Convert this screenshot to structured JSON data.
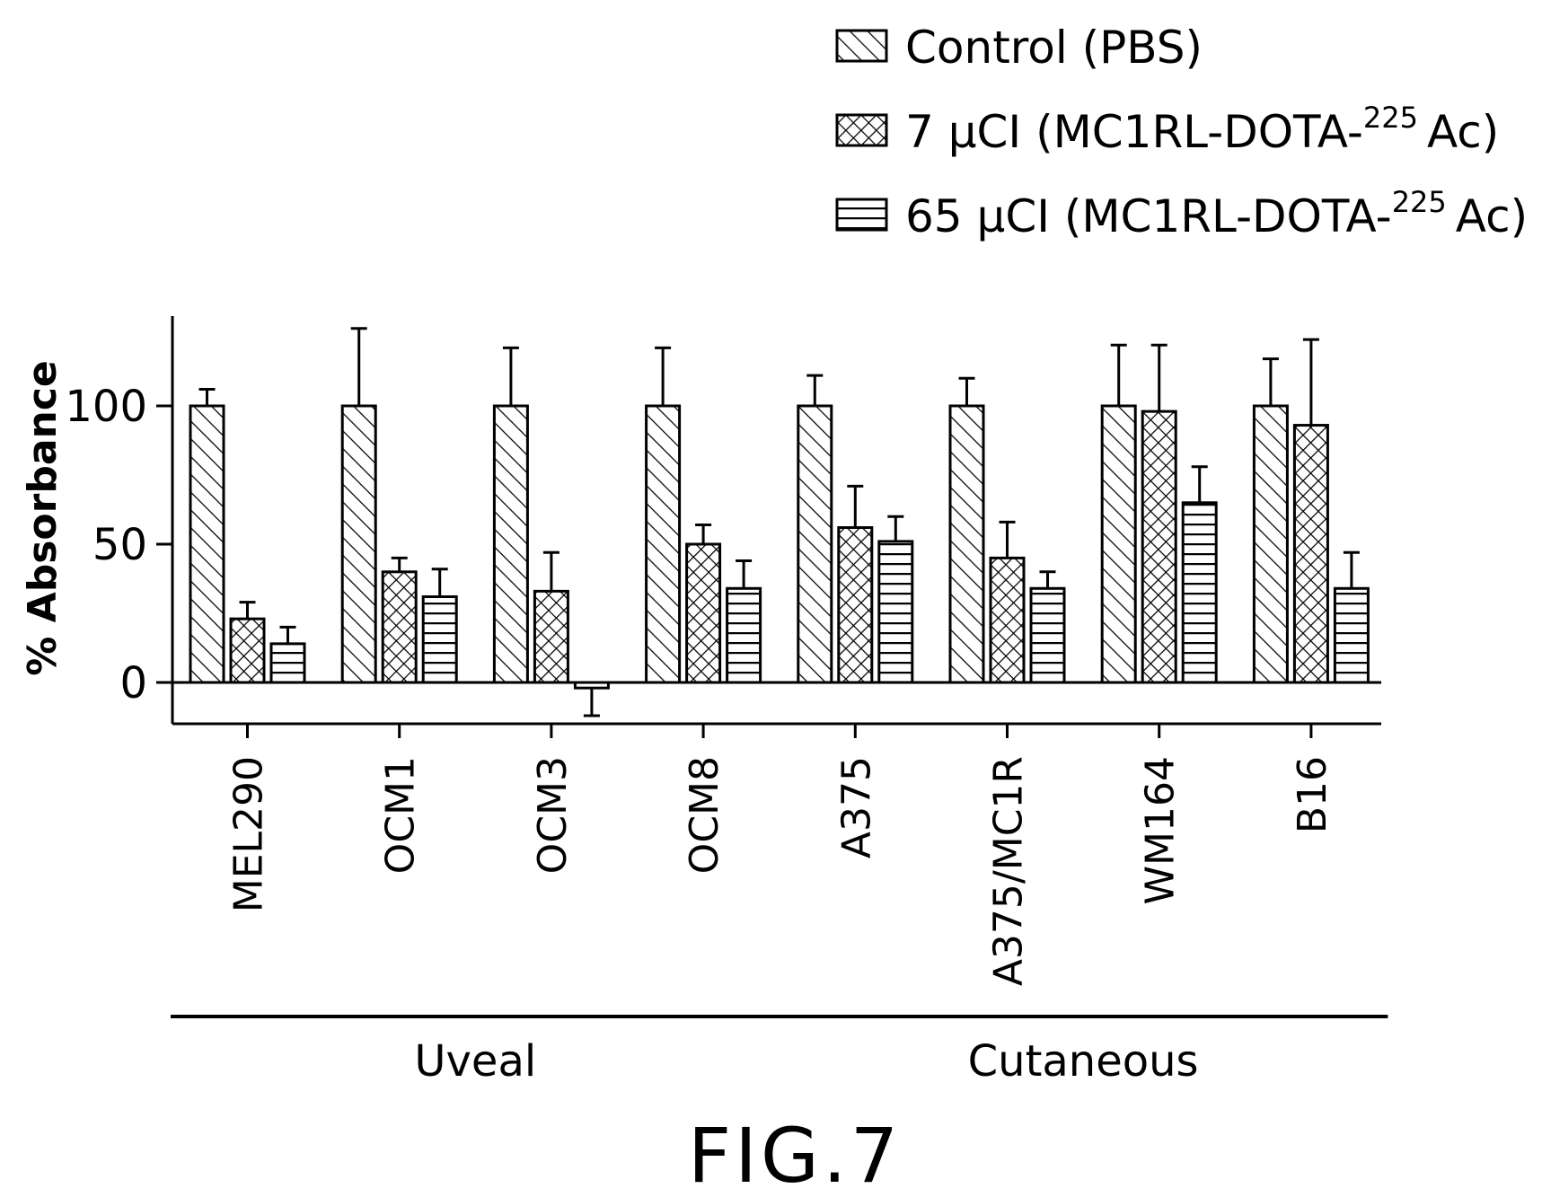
{
  "figure_label": "FIG.7",
  "chart_data": {
    "type": "bar",
    "ylabel": "% Absorbance",
    "ylim": [
      -15,
      130
    ],
    "yticks": [
      0,
      50,
      100
    ],
    "categories": [
      "MEL290",
      "OCM1",
      "OCM3",
      "OCM8",
      "A375",
      "A375/MC1R",
      "WM164",
      "B16"
    ],
    "series": [
      {
        "name": "Control (PBS)",
        "pattern": "diagonal-hatch",
        "values": [
          100,
          100,
          100,
          100,
          100,
          100,
          100,
          100
        ],
        "errors": [
          6,
          28,
          21,
          21,
          11,
          10,
          22,
          17
        ]
      },
      {
        "name_prefix": "7 μCI (MC1RL-DOTA-",
        "name_sup": "225",
        "name_suffix": "Ac)",
        "pattern": "crosshatch",
        "values": [
          23,
          40,
          33,
          50,
          56,
          45,
          98,
          93
        ],
        "errors": [
          6,
          5,
          14,
          7,
          15,
          13,
          24,
          31
        ]
      },
      {
        "name_prefix": "65 μCI (MC1RL-DOTA-",
        "name_sup": "225",
        "name_suffix": "Ac)",
        "pattern": "horizontal-lines",
        "values": [
          14,
          31,
          -2,
          34,
          51,
          34,
          65,
          34
        ],
        "errors": [
          6,
          10,
          10,
          10,
          9,
          6,
          13,
          13
        ]
      }
    ],
    "groups": [
      {
        "label": "Uveal",
        "categories": [
          "MEL290",
          "OCM1",
          "OCM3",
          "OCM8"
        ]
      },
      {
        "label": "Cutaneous",
        "categories": [
          "A375",
          "A375/MC1R",
          "WM164",
          "B16"
        ]
      }
    ],
    "legend_position": "top-right",
    "grid": false
  }
}
